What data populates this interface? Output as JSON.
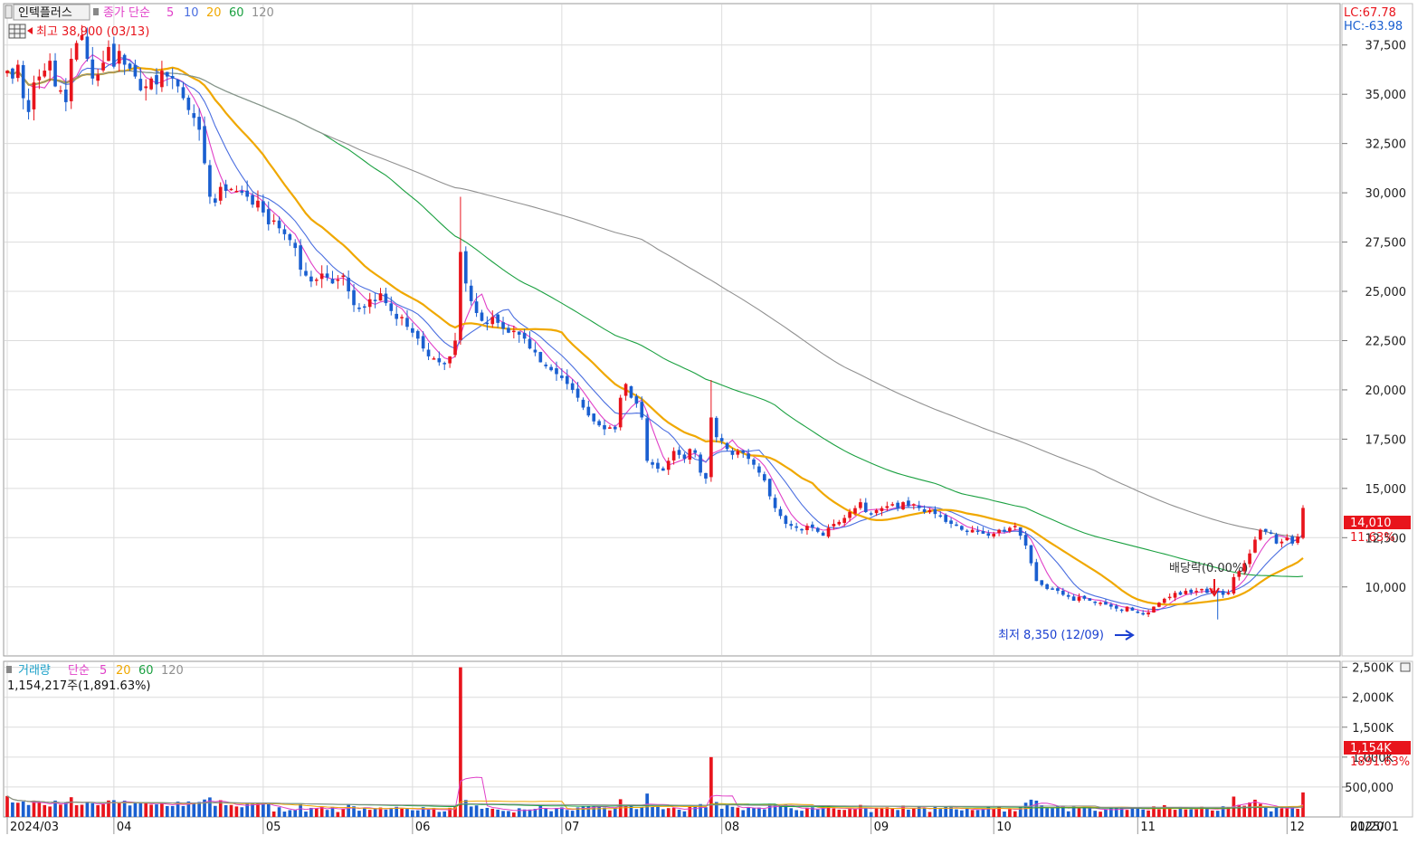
{
  "legend": {
    "stock_name": "인텍플러스",
    "price_label": "종가 단순",
    "ma_periods": [
      "5",
      "10",
      "20",
      "60",
      "120"
    ],
    "ma_colors": [
      "#e040c8",
      "#4a6ee0",
      "#f0a800",
      "#1aa040",
      "#909090"
    ]
  },
  "volume_legend": {
    "title": "거래량",
    "ma_label": "단순",
    "ma_periods": [
      "5",
      "20",
      "60",
      "120"
    ],
    "ma_colors": [
      "#e040c8",
      "#f0a800",
      "#1aa040",
      "#909090"
    ],
    "value_text": "1,154,217주(1,891.63%)"
  },
  "indicators": {
    "lc": "LC:67.78",
    "hc": "HC:-63.98"
  },
  "annotations": {
    "high": "최고 38,900 (03/13)",
    "low": "최저 8,350 (12/09)",
    "dividend": "배당락(0.00%)"
  },
  "current": {
    "price_tag": "14,010",
    "change_tag": "11.63%",
    "volume_tag": "1,154K",
    "volume_change_tag": "1891.63%"
  },
  "colors": {
    "up": "#e8141c",
    "down": "#1a5fd0",
    "grid": "#dcdcdc",
    "tag": "#e8141c"
  },
  "chart_data": {
    "type": "candlestick",
    "price_axis": {
      "ylim": [
        6500,
        39600
      ],
      "ticks": [
        "37,500",
        "35,000",
        "32,500",
        "30,000",
        "27,500",
        "25,000",
        "22,500",
        "20,000",
        "17,500",
        "15,000",
        "12,500",
        "10,000"
      ],
      "tick_values": [
        37500,
        35000,
        32500,
        30000,
        27500,
        25000,
        22500,
        20000,
        17500,
        15000,
        12500,
        10000
      ]
    },
    "volume_axis": {
      "ylim": [
        0,
        2600000
      ],
      "ticks": [
        "2,500K",
        "2,000K",
        "1,500K",
        "1,000K",
        "500,000"
      ],
      "tick_values": [
        2500000,
        2000000,
        1500000,
        1000000,
        500000
      ]
    },
    "x_axis": {
      "labels": [
        "2024/03",
        "04",
        "05",
        "06",
        "07",
        "08",
        "09",
        "10",
        "11",
        "12",
        "2025/01",
        "01/20"
      ],
      "label_index": [
        0,
        20,
        48,
        76,
        104,
        134,
        162,
        185,
        212,
        240,
        269,
        296
      ]
    },
    "close": [
      36200,
      35800,
      36500,
      34800,
      34100,
      35600,
      35900,
      36200,
      36700,
      35400,
      35200,
      34600,
      36800,
      37600,
      38000,
      36800,
      35800,
      36000,
      36600,
      37400,
      36400,
      37200,
      36500,
      36300,
      35900,
      35200,
      35400,
      35800,
      35500,
      36200,
      35900,
      35800,
      35400,
      34800,
      34200,
      33800,
      33200,
      31500,
      29800,
      29500,
      30300,
      30100,
      30200,
      30100,
      30000,
      29800,
      29400,
      29600,
      29000,
      28400,
      28600,
      28200,
      27900,
      27600,
      27200,
      26100,
      25800,
      25500,
      25600,
      25900,
      25700,
      25400,
      25600,
      25800,
      25000,
      24300,
      24100,
      24200,
      24600,
      24500,
      24900,
      24400,
      24000,
      23600,
      23700,
      23200,
      22900,
      22600,
      22100,
      21700,
      21600,
      21400,
      21300,
      21700,
      22500,
      27000,
      25400,
      24500,
      23900,
      23500,
      23400,
      23700,
      23400,
      23100,
      22900,
      23000,
      22800,
      22600,
      22100,
      21900,
      21400,
      21200,
      21000,
      20800,
      20600,
      20300,
      20000,
      19600,
      19100,
      18700,
      18400,
      18200,
      18000,
      18100,
      18000,
      19600,
      20300,
      19600,
      19300,
      18600,
      16400,
      16200,
      16000,
      15900,
      16400,
      16900,
      16700,
      16500,
      17000,
      16800,
      15800,
      15500,
      18600,
      17600,
      17400,
      17000,
      16700,
      16900,
      16800,
      16500,
      16200,
      15800,
      15400,
      14600,
      14000,
      13600,
      13200,
      13100,
      13000,
      12900,
      13100,
      13000,
      12800,
      12600,
      13000,
      13200,
      13300,
      13500,
      13800,
      14000,
      14300,
      13800,
      13700,
      13900,
      14000,
      14100,
      14200,
      14000,
      14300,
      14100,
      14200,
      14000,
      13800,
      13900,
      13700,
      13600,
      13300,
      13200,
      13100,
      12900,
      12800,
      12900,
      12800,
      12700,
      12600,
      12700,
      12900,
      12800,
      13000,
      13100,
      12600,
      12100,
      11200,
      10300,
      10100,
      9900,
      9900,
      9800,
      9600,
      9500,
      9300,
      9500,
      9400,
      9300,
      9200,
      9200,
      9100,
      9000,
      8900,
      8800,
      9000,
      8800,
      8700,
      8600,
      8700,
      9000,
      9200,
      9400,
      9500,
      9700,
      9600,
      9800,
      9700,
      9800,
      9900,
      9700,
      9800,
      9800,
      9600,
      9700,
      10500,
      10800,
      11200,
      11700,
      12400,
      12900,
      12800,
      12700,
      12200,
      12300,
      12500,
      12200,
      12550,
      14010
    ]
  }
}
